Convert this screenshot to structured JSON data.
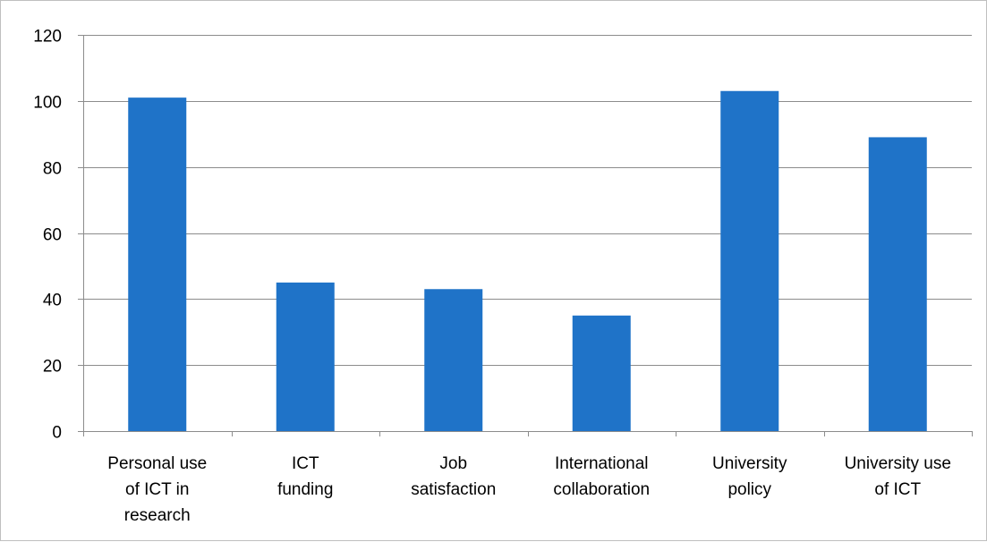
{
  "chart_data": {
    "type": "bar",
    "categories": [
      [
        "Personal use",
        "of ICT in",
        "research"
      ],
      [
        "ICT",
        "funding"
      ],
      [
        "Job",
        "satisfaction"
      ],
      [
        "International",
        "collaboration"
      ],
      [
        "University",
        "policy"
      ],
      [
        "University use",
        "of ICT"
      ]
    ],
    "values": [
      101,
      45,
      43,
      35,
      103,
      89
    ],
    "ylim": [
      0,
      120
    ],
    "yticks": [
      0,
      20,
      40,
      60,
      80,
      100,
      120
    ],
    "grid": true,
    "bar_color": "#1f73c8",
    "grid_color": "#8c8c8c"
  }
}
